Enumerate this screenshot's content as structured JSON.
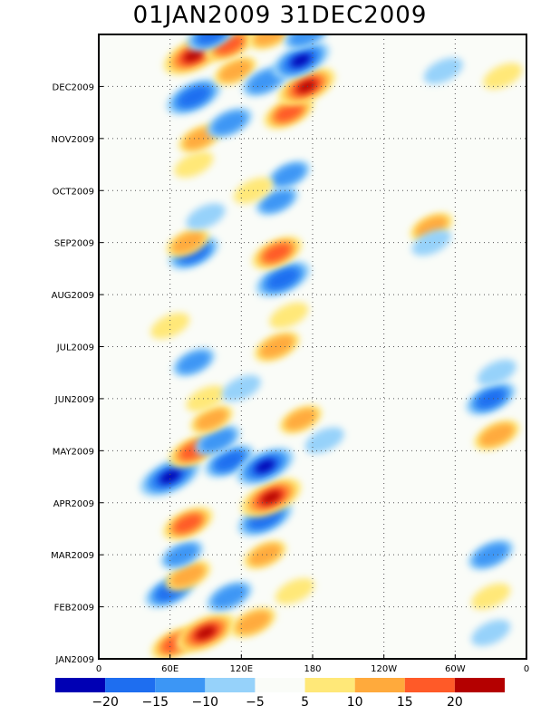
{
  "chart_data": {
    "type": "heatmap",
    "title": "01JAN2009 31DEC2009",
    "xlabel": "",
    "ylabel": "",
    "x_ticks": [
      {
        "lon": 0,
        "label": "0"
      },
      {
        "lon": 60,
        "label": "60E"
      },
      {
        "lon": 120,
        "label": "120E"
      },
      {
        "lon": 180,
        "label": "180"
      },
      {
        "lon": 240,
        "label": "120W"
      },
      {
        "lon": 300,
        "label": "60W"
      },
      {
        "lon": 360,
        "label": "0"
      }
    ],
    "xlim": [
      0,
      360
    ],
    "y_ticks": [
      {
        "month": 0,
        "label": "JAN2009"
      },
      {
        "month": 1,
        "label": "FEB2009"
      },
      {
        "month": 2,
        "label": "MAR2009"
      },
      {
        "month": 3,
        "label": "APR2009"
      },
      {
        "month": 4,
        "label": "MAY2009"
      },
      {
        "month": 5,
        "label": "JUN2009"
      },
      {
        "month": 6,
        "label": "JUL2009"
      },
      {
        "month": 7,
        "label": "AUG2009"
      },
      {
        "month": 8,
        "label": "SEP2009"
      },
      {
        "month": 9,
        "label": "OCT2009"
      },
      {
        "month": 10,
        "label": "NOV2009"
      },
      {
        "month": 11,
        "label": "DEC2009"
      }
    ],
    "ylim": [
      0,
      12
    ],
    "grid": true,
    "colorbar": {
      "labels": [
        "-20",
        "-15",
        "-10",
        "-5",
        "5",
        "10",
        "15",
        "20"
      ],
      "colors": [
        "#0000b4",
        "#1e6ef0",
        "#3c96f5",
        "#96d2fa",
        "#fafcf8",
        "#ffe878",
        "#ffaa3c",
        "#ff5a28",
        "#b40000"
      ]
    },
    "anomalies": [
      {
        "lon": 65,
        "month": 0.3,
        "value": 15
      },
      {
        "lon": 90,
        "month": 0.5,
        "value": 22
      },
      {
        "lon": 130,
        "month": 0.7,
        "value": 12
      },
      {
        "lon": 60,
        "month": 1.3,
        "value": -15
      },
      {
        "lon": 110,
        "month": 1.2,
        "value": -12
      },
      {
        "lon": 75,
        "month": 1.6,
        "value": 12
      },
      {
        "lon": 330,
        "month": 1.2,
        "value": 8
      },
      {
        "lon": 70,
        "month": 2.0,
        "value": -10
      },
      {
        "lon": 75,
        "month": 2.6,
        "value": 15
      },
      {
        "lon": 60,
        "month": 3.5,
        "value": -22
      },
      {
        "lon": 80,
        "month": 4.0,
        "value": 15
      },
      {
        "lon": 110,
        "month": 3.8,
        "value": -15
      },
      {
        "lon": 140,
        "month": 2.7,
        "value": -18
      },
      {
        "lon": 145,
        "month": 3.1,
        "value": 22
      },
      {
        "lon": 140,
        "month": 3.7,
        "value": -20
      },
      {
        "lon": 100,
        "month": 4.2,
        "value": -12
      },
      {
        "lon": 190,
        "month": 4.2,
        "value": -8
      },
      {
        "lon": 95,
        "month": 4.6,
        "value": 10
      },
      {
        "lon": 170,
        "month": 4.6,
        "value": 10
      },
      {
        "lon": 330,
        "month": 2.0,
        "value": -12
      },
      {
        "lon": 335,
        "month": 4.3,
        "value": 12
      },
      {
        "lon": 330,
        "month": 5.0,
        "value": -15
      },
      {
        "lon": 335,
        "month": 5.5,
        "value": -8
      },
      {
        "lon": 90,
        "month": 5.0,
        "value": 8
      },
      {
        "lon": 120,
        "month": 5.2,
        "value": -8
      },
      {
        "lon": 80,
        "month": 5.7,
        "value": -10
      },
      {
        "lon": 60,
        "month": 6.4,
        "value": 8
      },
      {
        "lon": 150,
        "month": 6.0,
        "value": 12
      },
      {
        "lon": 160,
        "month": 6.6,
        "value": 8
      },
      {
        "lon": 155,
        "month": 7.3,
        "value": -18
      },
      {
        "lon": 150,
        "month": 7.8,
        "value": 15
      },
      {
        "lon": 80,
        "month": 7.8,
        "value": -15
      },
      {
        "lon": 75,
        "month": 8.0,
        "value": 10
      },
      {
        "lon": 90,
        "month": 8.5,
        "value": -8
      },
      {
        "lon": 150,
        "month": 8.8,
        "value": -10
      },
      {
        "lon": 280,
        "month": 8.3,
        "value": 10
      },
      {
        "lon": 280,
        "month": 8.0,
        "value": -8
      },
      {
        "lon": 80,
        "month": 9.5,
        "value": 8
      },
      {
        "lon": 160,
        "month": 9.3,
        "value": -10
      },
      {
        "lon": 85,
        "month": 10.0,
        "value": 10
      },
      {
        "lon": 110,
        "month": 10.3,
        "value": -12
      },
      {
        "lon": 80,
        "month": 10.8,
        "value": -18
      },
      {
        "lon": 160,
        "month": 10.5,
        "value": 15
      },
      {
        "lon": 175,
        "month": 11.0,
        "value": 20
      },
      {
        "lon": 80,
        "month": 11.6,
        "value": 22
      },
      {
        "lon": 115,
        "month": 11.3,
        "value": 10
      },
      {
        "lon": 140,
        "month": 11.1,
        "value": -12
      },
      {
        "lon": 170,
        "month": 11.5,
        "value": -20
      },
      {
        "lon": 110,
        "month": 11.8,
        "value": 15
      },
      {
        "lon": 145,
        "month": 12.0,
        "value": 12
      },
      {
        "lon": 175,
        "month": 12.0,
        "value": -12
      },
      {
        "lon": 95,
        "month": 12.0,
        "value": -15
      },
      {
        "lon": 130,
        "month": 9.0,
        "value": 8
      },
      {
        "lon": 140,
        "month": 2.0,
        "value": 10
      },
      {
        "lon": 165,
        "month": 1.3,
        "value": 8
      },
      {
        "lon": 290,
        "month": 11.3,
        "value": -8
      },
      {
        "lon": 340,
        "month": 11.2,
        "value": 8
      },
      {
        "lon": 330,
        "month": 0.5,
        "value": -8
      }
    ]
  }
}
